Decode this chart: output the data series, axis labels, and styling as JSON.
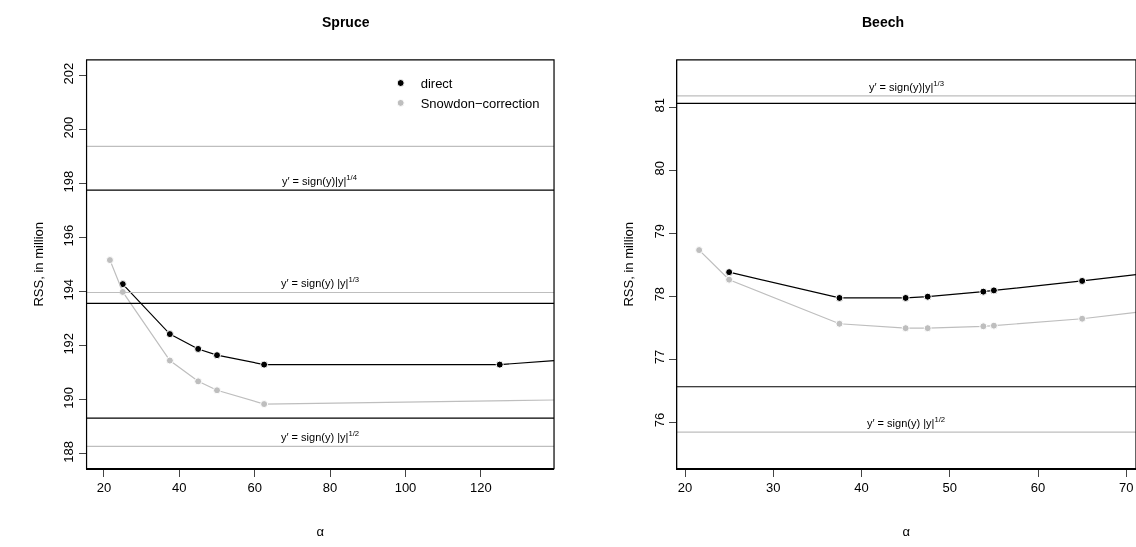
{
  "chart_data": [
    {
      "type": "line",
      "title": "Spruce",
      "xlabel": "α",
      "ylabel": "RSS, in million",
      "x": [
        21.6,
        25,
        37.5,
        45,
        50,
        62.5,
        125,
        139.4
      ],
      "series": [
        {
          "name": "direct",
          "color": "#000000",
          "values": [
            null,
            194.28,
            192.43,
            191.88,
            191.65,
            191.3,
            191.3,
            191.45
          ]
        },
        {
          "name": "Snowdon−correction",
          "color": "#bebebe",
          "values": [
            195.17,
            193.99,
            191.45,
            190.68,
            190.35,
            189.84,
            null,
            189.99
          ]
        }
      ],
      "xlim": [
        15.4,
        139.4
      ],
      "ylim": [
        187.45,
        202.58
      ],
      "xticks": [
        20,
        40,
        60,
        80,
        100,
        120
      ],
      "yticks": [
        188,
        190,
        192,
        194,
        196,
        198,
        200,
        202
      ],
      "ref_lines": [
        {
          "axis": "y",
          "value": 199.38,
          "color": "#bebebe"
        },
        {
          "axis": "y",
          "value": 197.76,
          "color": "#000000",
          "label": "y′ = sign(y)|y|$^{1/4}$"
        },
        {
          "axis": "y",
          "value": 193.97,
          "color": "#bebebe",
          "label": "y′ = sign(y) |y|$^{1/3}$"
        },
        {
          "axis": "y",
          "value": 193.57,
          "color": "#000000"
        },
        {
          "axis": "y",
          "value": 189.32,
          "color": "#000000"
        },
        {
          "axis": "y",
          "value": 188.27,
          "color": "#bebebe",
          "label": "y′ = sign(y) |y|$^{1/2}$"
        }
      ],
      "marker": "circle",
      "line_style": "solid",
      "legend": "top right"
    },
    {
      "type": "line",
      "title": "Beech",
      "xlabel": "α",
      "ylabel": "RSS, in million",
      "x": [
        21.6,
        25,
        37.5,
        45,
        47.5,
        53.8,
        55,
        65,
        71.1
      ],
      "series": [
        {
          "color": "#000000",
          "values": [
            null,
            78.38,
            77.97,
            77.97,
            77.99,
            78.07,
            78.09,
            78.24,
            78.34
          ]
        },
        {
          "color": "#bebebe",
          "values": [
            78.73,
            78.26,
            77.56,
            77.49,
            77.49,
            77.52,
            77.53,
            77.64,
            77.74
          ]
        }
      ],
      "xlim": [
        19.06,
        71.1
      ],
      "ylim": [
        75.26,
        81.75
      ],
      "xticks": [
        20,
        30,
        40,
        50,
        60,
        70
      ],
      "yticks": [
        76,
        77,
        78,
        79,
        80,
        81
      ],
      "ref_lines": [
        {
          "axis": "y",
          "value": 81.18,
          "color": "#bebebe",
          "label": "y′ = sign(y)|y|$^{1/3}$"
        },
        {
          "axis": "y",
          "value": 81.06,
          "color": "#000000"
        },
        {
          "axis": "y",
          "value": 76.56,
          "color": "#000000"
        },
        {
          "axis": "y",
          "value": 75.84,
          "color": "#bebebe",
          "label": "y′ = sign(y) |y|$^{1/2}$"
        }
      ],
      "marker": "circle",
      "line_style": "solid",
      "legend": false
    }
  ]
}
